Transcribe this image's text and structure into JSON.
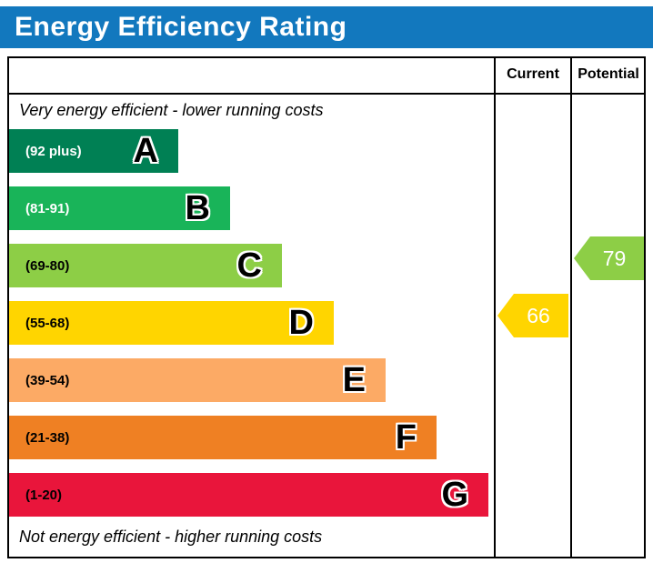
{
  "header": {
    "title": "Energy Efficiency Rating",
    "bg_color": "#1278be"
  },
  "columns": {
    "current": "Current",
    "potential": "Potential"
  },
  "chart_data": {
    "type": "bar",
    "title": "Energy Efficiency Rating",
    "top_note": "Very energy efficient - lower running costs",
    "bottom_note": "Not energy efficient - higher running costs",
    "bands": [
      {
        "letter": "A",
        "range_label": "(92 plus)",
        "color": "#008054",
        "text_color": "#ffffff"
      },
      {
        "letter": "B",
        "range_label": "(81-91)",
        "color": "#19b459",
        "text_color": "#ffffff"
      },
      {
        "letter": "C",
        "range_label": "(69-80)",
        "color": "#8dce46",
        "text_color": "#000000"
      },
      {
        "letter": "D",
        "range_label": "(55-68)",
        "color": "#ffd500",
        "text_color": "#000000"
      },
      {
        "letter": "E",
        "range_label": "(39-54)",
        "color": "#fcaa65",
        "text_color": "#000000"
      },
      {
        "letter": "F",
        "range_label": "(21-38)",
        "color": "#ef8023",
        "text_color": "#000000"
      },
      {
        "letter": "G",
        "range_label": "(1-20)",
        "color": "#e9153b",
        "text_color": "#000000"
      }
    ],
    "ratings": {
      "current": {
        "value": 66,
        "band": "D",
        "color": "#ffd500"
      },
      "potential": {
        "value": 79,
        "band": "C",
        "color": "#8dce46"
      }
    }
  }
}
